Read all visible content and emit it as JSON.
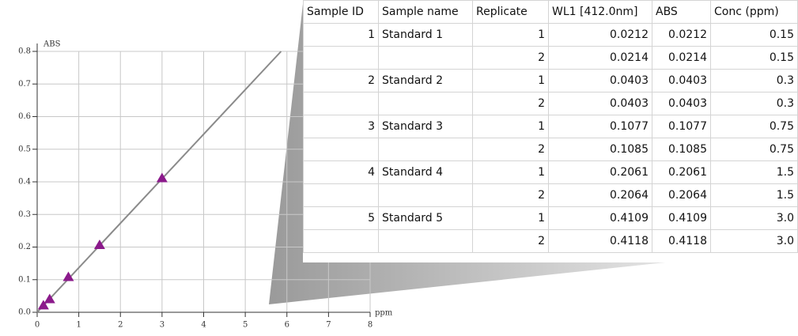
{
  "chart_data": {
    "type": "scatter",
    "x_label": "ppm",
    "y_label": "ABS",
    "series": [
      {
        "color": "#8b1a8b",
        "x": [
          0.15,
          0.3,
          0.75,
          1.5,
          3.0
        ],
        "values": [
          0.021,
          0.04,
          0.108,
          0.206,
          0.411
        ]
      },
      {
        "color": "#8a8a8a",
        "x": [
          0,
          5.86
        ],
        "values": [
          0,
          0.8
        ]
      }
    ],
    "xlim": [
      0,
      8
    ],
    "xticks": [
      0,
      1,
      2,
      3,
      4,
      5,
      6,
      7,
      8
    ],
    "ylim": [
      0,
      0.8
    ],
    "yticks": [
      {
        "value": 0,
        "label": "0.0"
      },
      0.1,
      0.2,
      0.3,
      0.4,
      0.5,
      0.6,
      0.7,
      0.8
    ],
    "grid": true
  },
  "table": {
    "headers": [
      "Sample ID",
      "Sample name",
      "Replicate",
      "WL1 [412.0nm]",
      "ABS",
      "Conc (ppm)"
    ],
    "rows": [
      [
        "1",
        "Standard 1",
        "1",
        "0.0212",
        "0.0212",
        "0.15"
      ],
      [
        null,
        null,
        "2",
        "0.0214",
        "0.0214",
        "0.15"
      ],
      [
        "2",
        "Standard 2",
        "1",
        "0.0403",
        "0.0403",
        "0.3"
      ],
      [
        null,
        null,
        "2",
        "0.0403",
        "0.0403",
        "0.3"
      ],
      [
        "3",
        "Standard 3",
        "1",
        "0.1077",
        "0.1077",
        "0.75"
      ],
      [
        null,
        null,
        "2",
        "0.1085",
        "0.1085",
        "0.75"
      ],
      [
        "4",
        "Standard 4",
        "1",
        "0.2061",
        "0.2061",
        "1.5"
      ],
      [
        null,
        null,
        "2",
        "0.2064",
        "0.2064",
        "1.5"
      ],
      [
        "5",
        "Standard 5",
        "1",
        "0.4109",
        "0.4109",
        "3.0"
      ],
      [
        null,
        null,
        "2",
        "0.4118",
        "0.4118",
        "3.0"
      ]
    ]
  }
}
